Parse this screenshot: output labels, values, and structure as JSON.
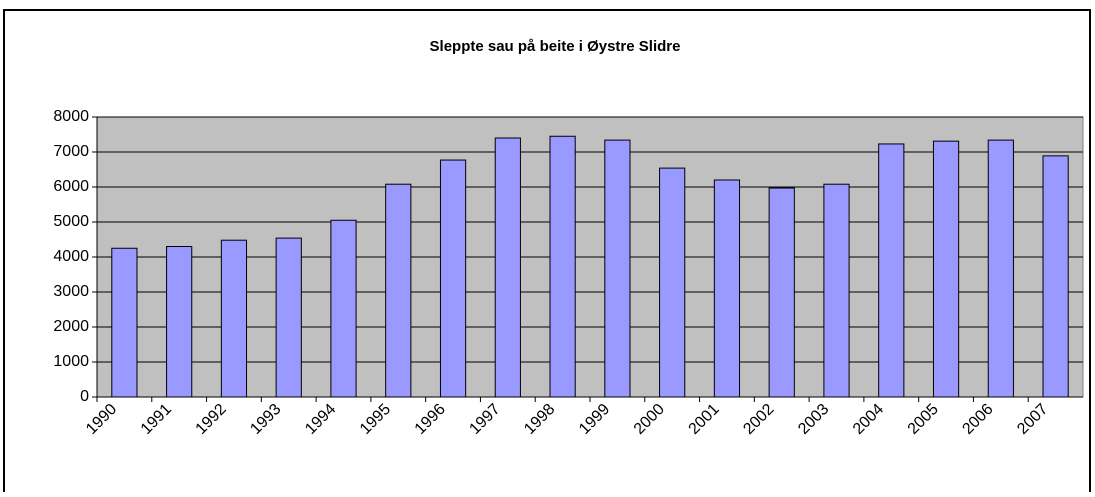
{
  "chart_data": {
    "type": "bar",
    "title": "Sleppte sau på beite i Øystre Slidre",
    "categories": [
      "1990",
      "1991",
      "1992",
      "1993",
      "1994",
      "1995",
      "1996",
      "1997",
      "1998",
      "1999",
      "2000",
      "2001",
      "2002",
      "2003",
      "2004",
      "2005",
      "2006",
      "2007"
    ],
    "values": [
      4250,
      4300,
      4480,
      4540,
      5050,
      6080,
      6770,
      7400,
      7450,
      7340,
      6540,
      6200,
      5970,
      6080,
      7230,
      7310,
      7340,
      6890
    ],
    "color": "#9999ff",
    "ylim": [
      0,
      8000
    ],
    "yticks": [
      0,
      1000,
      2000,
      3000,
      4000,
      5000,
      6000,
      7000,
      8000
    ],
    "grid": true
  }
}
